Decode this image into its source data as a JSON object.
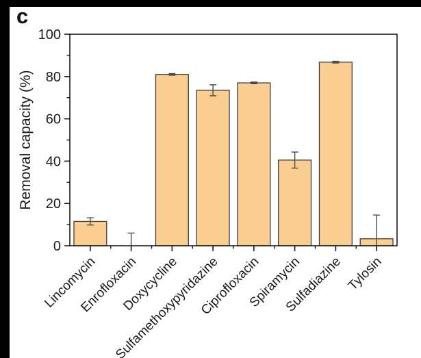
{
  "panel": {
    "label": "c"
  },
  "colors": {
    "bar_fill": "#FACD91",
    "bar_edge": "#3D3D3D",
    "axis": "#1A1A1A",
    "error_bar": "#4A4A4A",
    "tick_text": "#1A1A1A",
    "frame_bg": "#000000",
    "panel_bg": "#FFFFFF"
  },
  "chart_data": {
    "type": "bar",
    "title": "",
    "xlabel": "",
    "ylabel": "Removal capacity (%)",
    "ylim": [
      0,
      100
    ],
    "y_major_ticks": [
      0,
      20,
      40,
      60,
      80,
      100
    ],
    "y_minor_ticks": [
      10,
      30,
      50,
      70,
      90
    ],
    "grid": false,
    "legend": false,
    "x_label_rotation_deg": 45,
    "categories": [
      "Lincomycin",
      "Enrofloxacin",
      "Doxycycline",
      "Sulfamethoxypyridazine",
      "Ciprofloxacin",
      "Spiramycin",
      "Sulfadiazine",
      "Tylosin"
    ],
    "values": [
      11.5,
      0,
      81,
      73.5,
      77,
      40.5,
      86.8,
      3.3
    ],
    "errors_plus": [
      1.7,
      6,
      0.4,
      2.6,
      0.4,
      3.8,
      0.4,
      11.2
    ],
    "errors_minus": [
      1.7,
      0,
      0.4,
      2.6,
      0.4,
      3.8,
      0.4,
      3.3
    ]
  }
}
